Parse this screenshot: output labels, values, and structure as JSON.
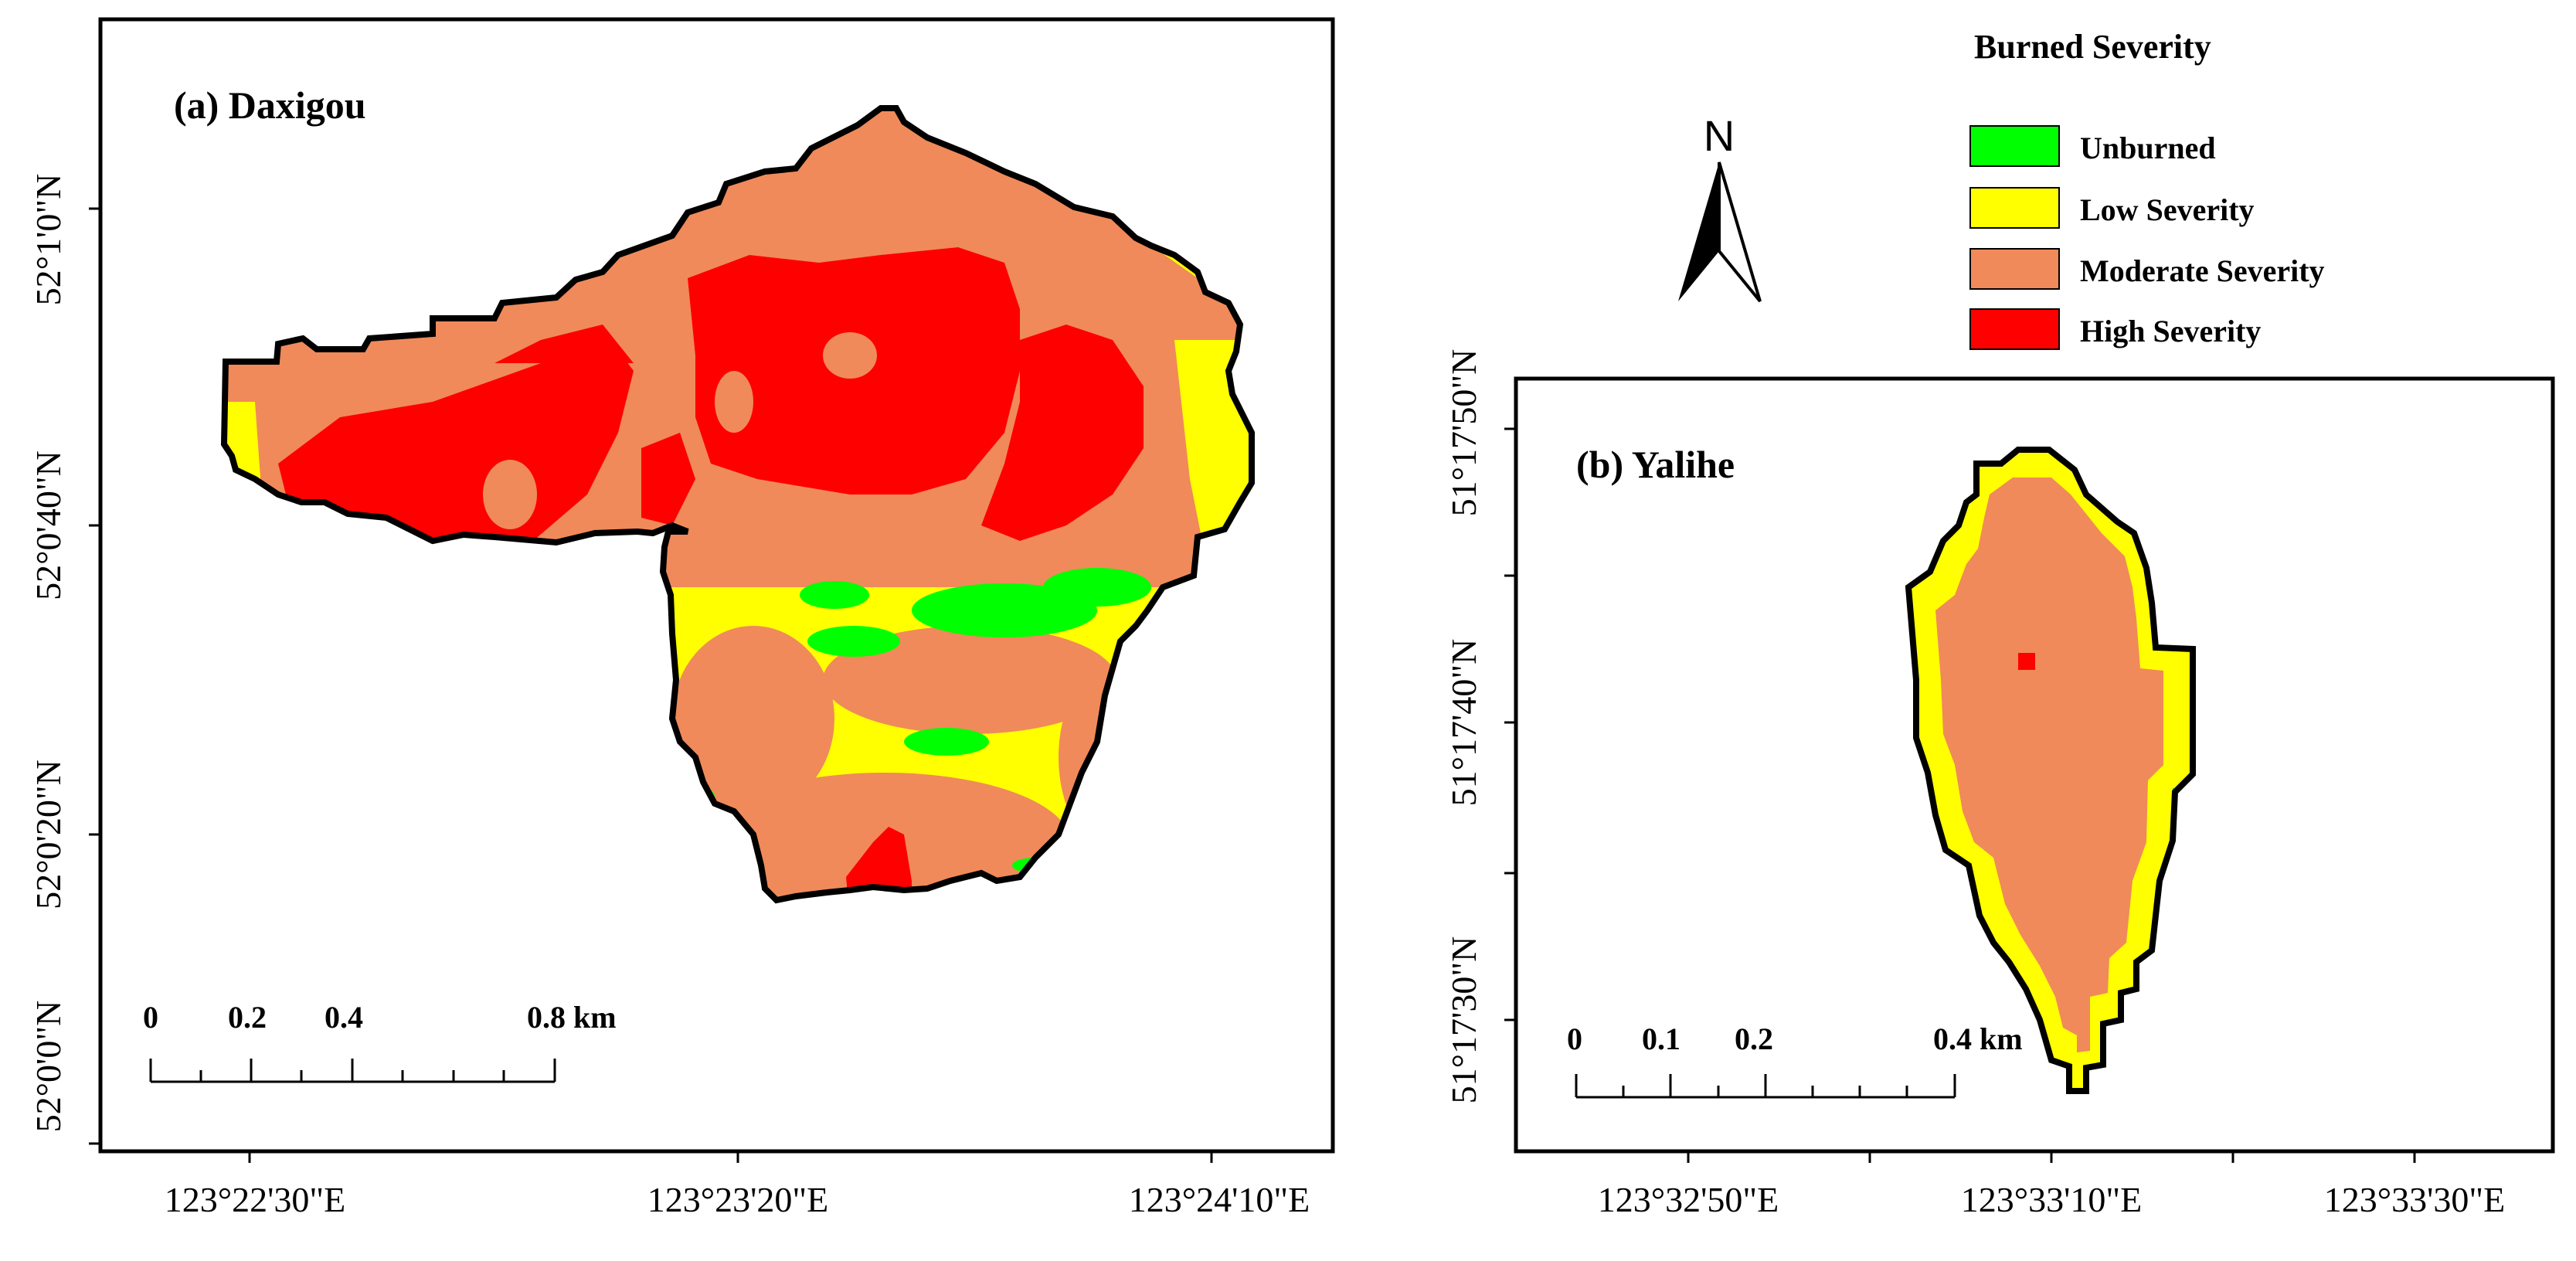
{
  "legend": {
    "title": "Burned Severity",
    "items": [
      {
        "label": "Unburned",
        "color": "#00ff00"
      },
      {
        "label": "Low Severity",
        "color": "#ffff00"
      },
      {
        "label": "Moderate Severity",
        "color": "#f08a5a"
      },
      {
        "label": "High Severity",
        "color": "#ff0000"
      }
    ]
  },
  "north_arrow": {
    "label": "N"
  },
  "map_a": {
    "title": "(a) Daxigou",
    "lat_labels": [
      "52°1'0\"N",
      "52°0'40\"N",
      "52°0'20\"N",
      "52°0'0\"N"
    ],
    "lon_labels": [
      "123°22'30\"E",
      "123°23'20\"E",
      "123°24'10\"E"
    ],
    "scale": {
      "ticks": [
        "0",
        "0.2",
        "0.4",
        "0.8 km"
      ]
    }
  },
  "map_b": {
    "title": "(b) Yalihe",
    "lat_labels": [
      "51°17'50\"N",
      "51°17'40\"N",
      "51°17'30\"N"
    ],
    "lon_labels": [
      "123°32'50\"E",
      "123°33'10\"E",
      "123°33'30\"E"
    ],
    "scale": {
      "ticks": [
        "0",
        "0.1",
        "0.2",
        "0.4 km"
      ]
    }
  }
}
